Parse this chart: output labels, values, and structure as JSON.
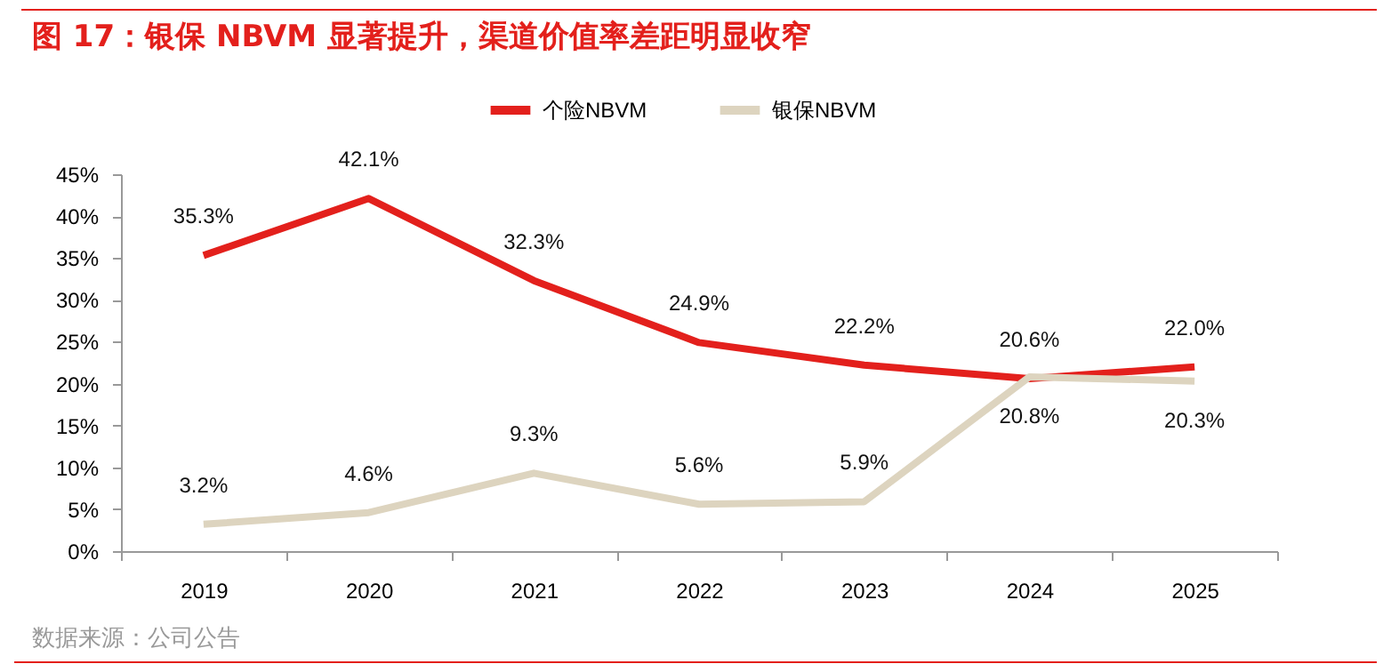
{
  "chart_data": {
    "type": "line",
    "title": "图 17：银保 NBVM 显著提升，渠道价值率差距明显收窄",
    "annotations": [
      "数据来源：公司公告"
    ],
    "categories": [
      "2019",
      "2020",
      "2021",
      "2022",
      "2023",
      "2024",
      "2025"
    ],
    "series": [
      {
        "name": "个险NBVM",
        "color": "#e3201c",
        "values": [
          35.3,
          42.1,
          32.3,
          24.9,
          22.2,
          20.6,
          22.0
        ],
        "value_labels": [
          "35.3%",
          "42.1%",
          "32.3%",
          "24.9%",
          "22.2%",
          "20.6%",
          "22.0%"
        ]
      },
      {
        "name": "银保NBVM",
        "color": "#ddd4bf",
        "values": [
          3.2,
          4.6,
          9.3,
          5.6,
          5.9,
          20.8,
          20.3
        ],
        "value_labels": [
          "3.2%",
          "4.6%",
          "9.3%",
          "5.6%",
          "5.9%",
          "20.8%",
          "20.3%"
        ]
      }
    ],
    "ylim": [
      0,
      45
    ],
    "yticks": [
      {
        "value": 0,
        "label": "0%"
      },
      {
        "value": 5,
        "label": "5%"
      },
      {
        "value": 10,
        "label": "10%"
      },
      {
        "value": 15,
        "label": "15%"
      },
      {
        "value": 20,
        "label": "20%"
      },
      {
        "value": 25,
        "label": "25%"
      },
      {
        "value": 30,
        "label": "30%"
      },
      {
        "value": 35,
        "label": "35%"
      },
      {
        "value": 40,
        "label": "40%"
      },
      {
        "value": 45,
        "label": "45%"
      }
    ],
    "grid": false,
    "legend": "top",
    "marker": "none",
    "line_style": "solid"
  }
}
